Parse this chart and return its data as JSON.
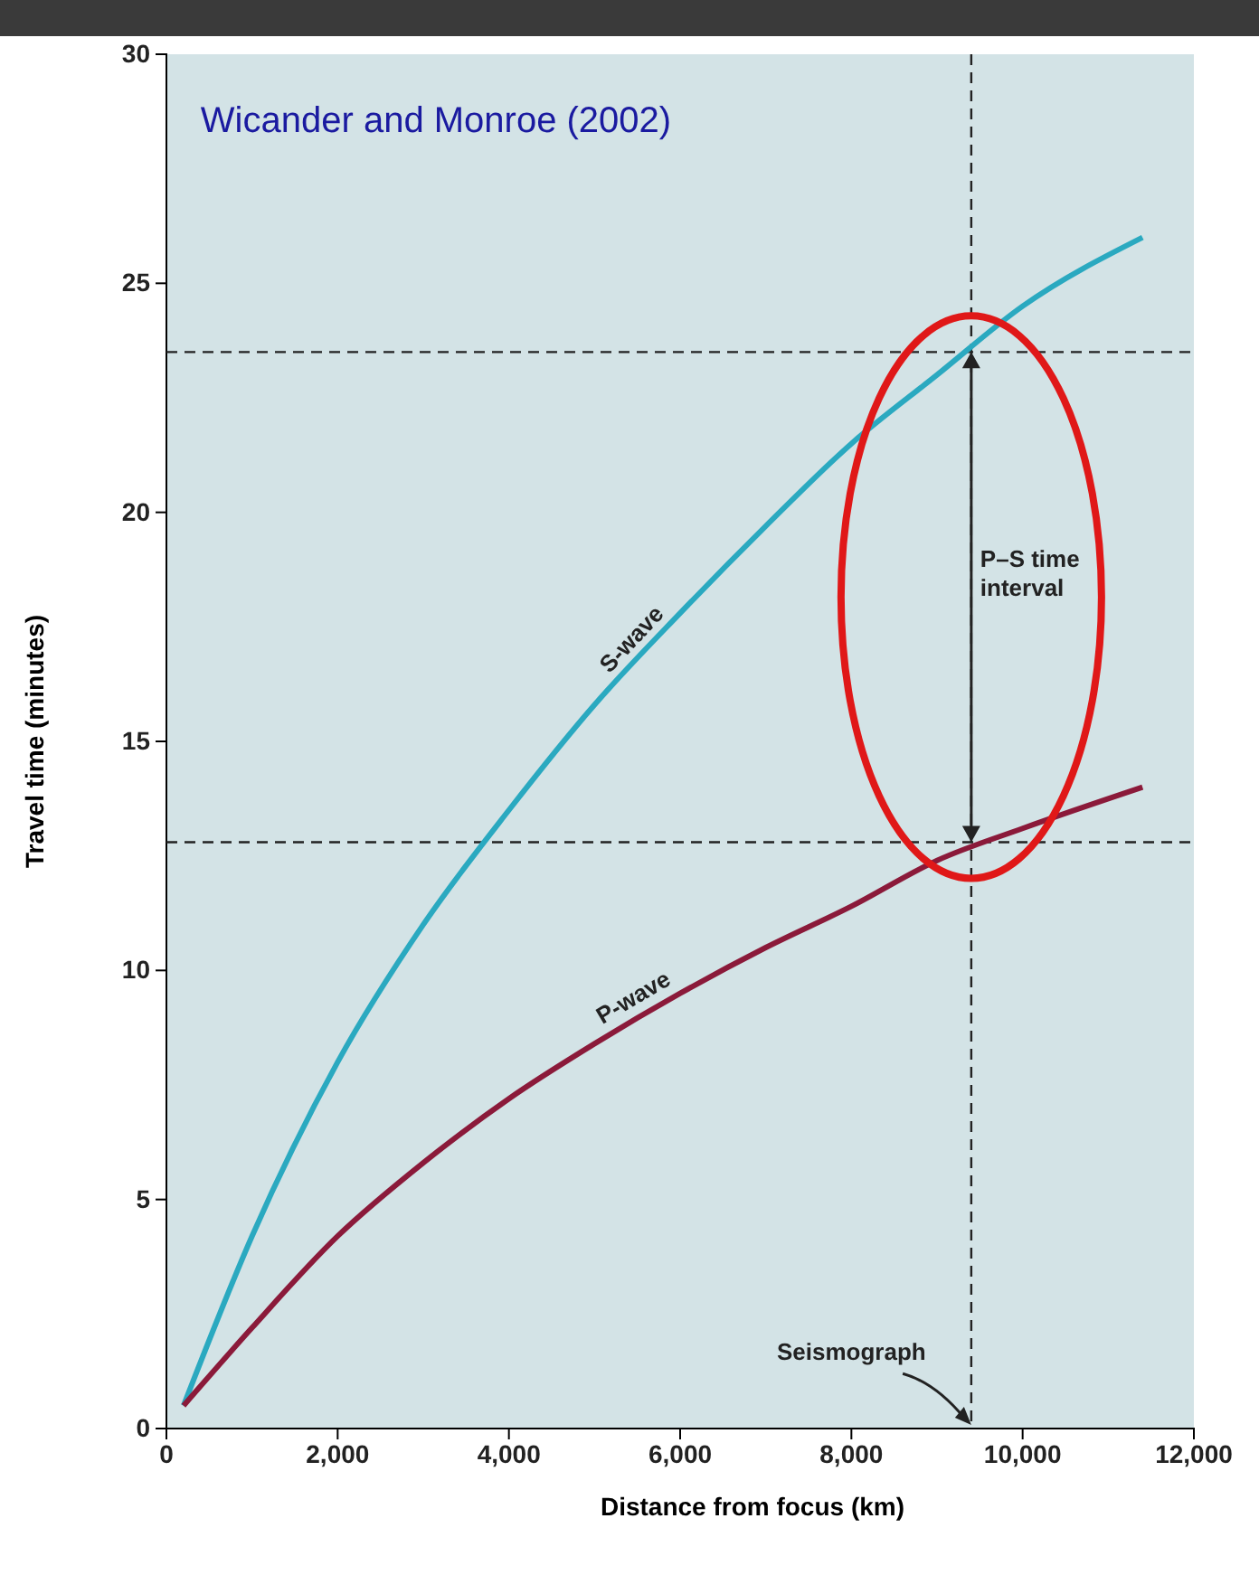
{
  "chart_data": {
    "type": "line",
    "xlabel": "Distance from focus (km)",
    "ylabel": "Travel time (minutes)",
    "xlim": [
      0,
      12000
    ],
    "xticks": [
      0,
      {
        "value": 2000,
        "label": "2,000"
      },
      {
        "value": 4000,
        "label": "4,000"
      },
      {
        "value": 6000,
        "label": "6,000"
      },
      {
        "value": 8000,
        "label": "8,000"
      },
      {
        "value": 10000,
        "label": "10,000"
      },
      {
        "value": 12000,
        "label": "12,000"
      }
    ],
    "ylim": [
      0,
      30
    ],
    "yticks": [
      0,
      5,
      10,
      15,
      20,
      25,
      30
    ],
    "grid": false,
    "legend": false,
    "marker": "none",
    "line_style": "solid",
    "series": [
      {
        "name": "S-wave",
        "color": "#2aa9c0",
        "x": [
          200,
          1000,
          2000,
          3000,
          4000,
          5000,
          6000,
          7000,
          8000,
          9000,
          10000,
          11400
        ],
        "values": [
          0.5,
          4.2,
          8,
          11,
          13.5,
          15.8,
          17.8,
          19.7,
          21.5,
          23,
          24.5,
          26
        ]
      },
      {
        "name": "P-wave",
        "color": "#8b1a3a",
        "x": [
          200,
          1000,
          2000,
          3000,
          4000,
          5000,
          6000,
          7000,
          8000,
          9000,
          10000,
          11400
        ],
        "values": [
          0.5,
          2.2,
          4.2,
          5.8,
          7.2,
          8.4,
          9.5,
          10.5,
          11.4,
          12.4,
          13.1,
          14
        ]
      }
    ],
    "ref_lines": [
      {
        "axis": "y",
        "value": 23.5,
        "color": "#222222",
        "line_style": "dashed"
      },
      {
        "axis": "y",
        "value": 12.8,
        "color": "#222222",
        "line_style": "dashed"
      },
      {
        "axis": "x",
        "value": 9400,
        "color": "#222222",
        "line_style": "dashed"
      }
    ],
    "annotations": [
      "Wicander and Monroe (2002)",
      "P–S time interval",
      "Seismograph"
    ]
  }
}
